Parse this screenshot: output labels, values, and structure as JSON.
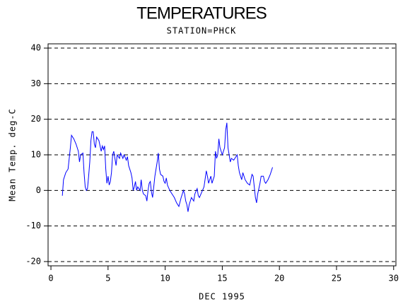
{
  "chart_data": {
    "type": "line",
    "title": "TEMPERATURES",
    "subtitle": "STATION=PHCK",
    "x_label": "DEC 1995",
    "y_label": "Mean Temp. deg-C",
    "color": "#0000ff",
    "grid": true,
    "xlim": [
      -0.25,
      30.2
    ],
    "xticks": [
      0,
      5,
      10,
      15,
      20,
      25,
      30
    ],
    "ylim": [
      -21.2,
      41.2
    ],
    "yticks": [
      -20,
      -10,
      0,
      10,
      20,
      30,
      40
    ],
    "x": [
      1.0,
      1.1,
      1.3,
      1.5,
      1.7,
      1.8,
      2.0,
      2.2,
      2.4,
      2.5,
      2.6,
      2.8,
      2.9,
      3.0,
      3.1,
      3.2,
      3.3,
      3.4,
      3.5,
      3.6,
      3.7,
      3.8,
      3.9,
      4.0,
      4.2,
      4.4,
      4.5,
      4.6,
      4.7,
      4.8,
      4.9,
      5.0,
      5.1,
      5.2,
      5.3,
      5.4,
      5.5,
      5.6,
      5.7,
      5.8,
      6.0,
      6.1,
      6.3,
      6.4,
      6.6,
      6.7,
      6.8,
      7.0,
      7.1,
      7.2,
      7.3,
      7.4,
      7.5,
      7.6,
      7.8,
      7.9,
      8.0,
      8.1,
      8.3,
      8.4,
      8.5,
      8.6,
      8.7,
      8.8,
      8.9,
      9.0,
      9.1,
      9.2,
      9.3,
      9.4,
      9.5,
      9.6,
      9.8,
      9.9,
      10.0,
      10.1,
      10.2,
      10.4,
      10.6,
      10.8,
      11.0,
      11.2,
      11.4,
      11.5,
      11.6,
      11.7,
      11.8,
      11.9,
      12.0,
      12.1,
      12.3,
      12.5,
      12.6,
      12.8,
      12.9,
      13.0,
      13.2,
      13.4,
      13.6,
      13.7,
      13.8,
      13.9,
      14.0,
      14.1,
      14.3,
      14.4,
      14.5,
      14.6,
      14.7,
      14.8,
      14.9,
      15.0,
      15.2,
      15.3,
      15.4,
      15.5,
      15.6,
      15.7,
      15.8,
      16.0,
      16.2,
      16.3,
      16.4,
      16.5,
      16.6,
      16.7,
      16.8,
      17.0,
      17.2,
      17.4,
      17.5,
      17.6,
      17.7,
      17.8,
      17.9,
      18.0,
      18.1,
      18.3,
      18.4,
      18.6,
      18.7,
      18.8,
      19.0,
      19.2,
      19.4
    ],
    "values": [
      -1.5,
      3,
      5,
      6,
      12,
      15.5,
      14.5,
      13,
      11,
      8,
      10,
      10.5,
      5,
      1,
      0,
      0.5,
      4,
      8,
      14,
      16.5,
      16.5,
      13,
      12,
      15,
      14,
      11,
      12.5,
      11.5,
      12.5,
      6,
      2,
      4,
      1.5,
      2.5,
      5,
      10,
      11,
      9,
      7,
      10,
      9,
      10.5,
      9,
      10,
      8.5,
      9.5,
      7,
      5,
      3.5,
      0,
      1,
      2.5,
      0,
      1,
      0,
      3,
      0,
      -1,
      -1.5,
      -3,
      0,
      2,
      2.5,
      -0.5,
      -2,
      1,
      4,
      6,
      8,
      10.5,
      6,
      4.5,
      4,
      2.5,
      2,
      3.5,
      1.5,
      0,
      -1,
      -2,
      -3.5,
      -4.5,
      -2,
      -1,
      0,
      -1,
      -3,
      -4,
      -6,
      -4,
      -2,
      -3,
      -1,
      0.5,
      -1.5,
      -2,
      -0.5,
      1,
      5.5,
      4,
      2,
      3,
      4,
      2,
      4,
      11,
      9,
      10,
      14.5,
      12,
      11,
      10,
      12,
      17,
      19,
      12,
      10,
      8,
      9,
      8.5,
      9.5,
      10,
      7,
      5,
      4,
      3,
      5,
      3,
      2,
      1.5,
      3,
      4.5,
      4,
      1,
      -2,
      -3.5,
      -1,
      2,
      4,
      4,
      2.5,
      2,
      3,
      4.5,
      6.5
    ]
  }
}
